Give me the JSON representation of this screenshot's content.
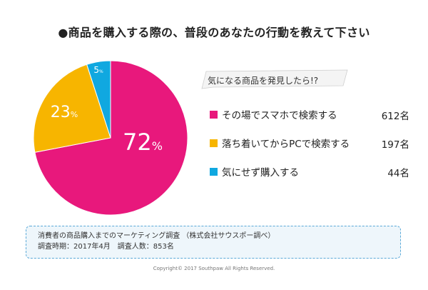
{
  "title": "●商品を購入する際の、普段のあなたの行動を教えて下さい",
  "subtitle": "気になる商品を発見したら!?",
  "chart_data": {
    "type": "pie",
    "slices": [
      {
        "label": "その場でスマホで検索する",
        "count": "612名",
        "value": 72,
        "percent_text": "72",
        "color": "#e8187c"
      },
      {
        "label": "落ち着いてからPCで検索する",
        "count": "197名",
        "value": 23,
        "percent_text": "23",
        "color": "#f7b500"
      },
      {
        "label": "気にせず購入する",
        "count": "44名",
        "value": 5,
        "percent_text": "5",
        "color": "#10a8e0"
      }
    ],
    "percent_sign": "%",
    "legend_position": "right"
  },
  "source": {
    "line1": "消費者の商品購入までのマーケティング調査 （株式会社サウスポー調べ）",
    "line2": "調査時期：2017年4月　調査人数：853名"
  },
  "copyright": "Copyright© 2017 Southpaw All Rights Reserved."
}
